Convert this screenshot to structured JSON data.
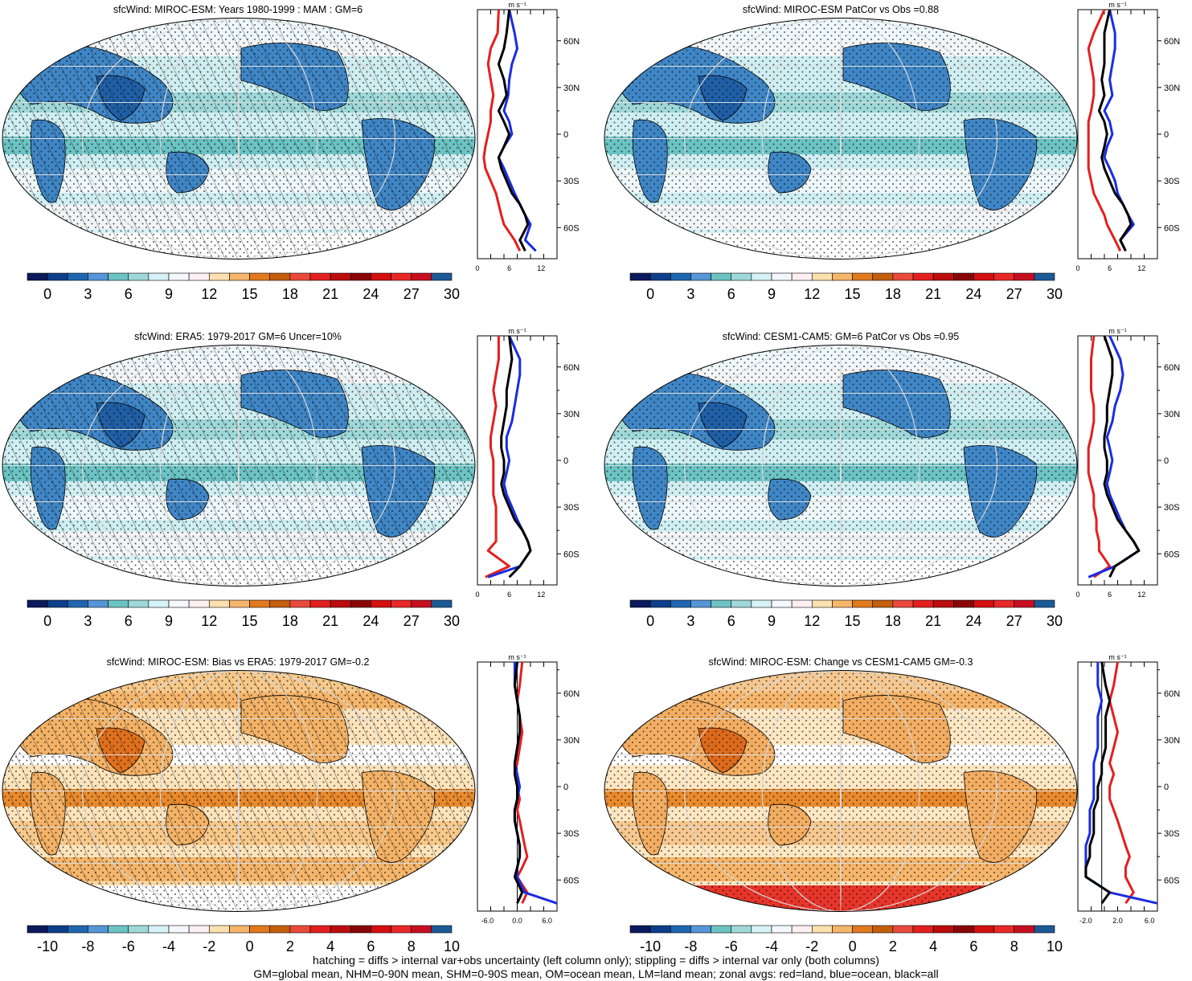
{
  "panels": [
    {
      "title": "sfcWind: MIROC-ESM: Years 1980-1999 : MAM : GM=6",
      "palette": "wind",
      "hatch": true,
      "zonal": "z1",
      "xticks": [
        "0",
        "6",
        "12"
      ],
      "cbar": [
        "0",
        "3",
        "6",
        "9",
        "12",
        "15",
        "18",
        "21",
        "24",
        "27",
        "30"
      ]
    },
    {
      "title": "sfcWind: MIROC-ESM PatCor vs Obs =0.88",
      "palette": "wind",
      "hatch": false,
      "zonal": "z2",
      "xticks": [
        "0",
        "6",
        "12"
      ],
      "cbar": [
        "0",
        "3",
        "6",
        "9",
        "12",
        "15",
        "18",
        "21",
        "24",
        "27",
        "30"
      ]
    },
    {
      "title": "sfcWind: ERA5: 1979-2017 GM=6 Uncer=10%",
      "palette": "wind",
      "hatch": true,
      "zonal": "z3",
      "xticks": [
        "0",
        "6",
        "12"
      ],
      "cbar": [
        "0",
        "3",
        "6",
        "9",
        "12",
        "15",
        "18",
        "21",
        "24",
        "27",
        "30"
      ]
    },
    {
      "title": "sfcWind: CESM1-CAM5: GM=6 PatCor vs Obs =0.95",
      "palette": "wind",
      "hatch": false,
      "zonal": "z4",
      "xticks": [
        "0",
        "6",
        "12"
      ],
      "cbar": [
        "0",
        "3",
        "6",
        "9",
        "12",
        "15",
        "18",
        "21",
        "24",
        "27",
        "30"
      ]
    },
    {
      "title": "sfcWind: MIROC-ESM: Bias vs ERA5: 1979-2017 GM=-0.2",
      "palette": "bias",
      "hatch": true,
      "zonal": "z5",
      "xticks": [
        "-6.0",
        "0.0",
        "6.0"
      ],
      "cbar": [
        "-10",
        "-8",
        "-6",
        "-4",
        "-2",
        "0",
        "2",
        "4",
        "6",
        "8",
        "10"
      ]
    },
    {
      "title": "sfcWind: MIROC-ESM: Change vs CESM1-CAM5 GM=-0.3",
      "palette": "change",
      "hatch": false,
      "zonal": "z6",
      "xticks": [
        "-2.0",
        "2.0",
        "6.0"
      ],
      "cbar": [
        "-10",
        "-8",
        "-6",
        "-4",
        "-2",
        "0",
        "2",
        "4",
        "6",
        "8",
        "10"
      ]
    }
  ],
  "zonal_unit": "m s⁻¹",
  "lat_ticks": [
    "60N",
    "30N",
    "0",
    "30S",
    "60S"
  ],
  "colorbar_colors": [
    "#0b1a5c",
    "#0d3e8a",
    "#1f66b0",
    "#5596d6",
    "#6cc3c4",
    "#9ed8d8",
    "#d6f2f6",
    "#f4f7fb",
    "#fdf0f2",
    "#fce0b0",
    "#f5b56a",
    "#e07a1d",
    "#c45f0c",
    "#ea4a3c",
    "#e41f1f",
    "#bb0d0d",
    "#8a0606",
    "#d40f0f",
    "#ea2727",
    "#c80f1f",
    "#1c5a96"
  ],
  "chart_data": [
    {
      "type": "line",
      "title": "sfcWind: MIROC-ESM: Years 1980-1999 : MAM : GM=6",
      "xlabel": "m s⁻¹",
      "xlim": [
        0,
        15
      ],
      "ylim": [
        -80,
        80
      ],
      "series": [
        {
          "name": "",
          "color": "#e41f1f",
          "x": [
            4,
            3.8,
            2.5,
            2,
            2.5,
            3,
            2.5,
            2.5,
            2,
            1.5,
            1.2,
            1.5,
            2.5,
            3.5,
            4,
            4.5,
            5,
            7,
            8
          ],
          "y": [
            80,
            65,
            55,
            45,
            35,
            25,
            15,
            8,
            0,
            -8,
            -15,
            -22,
            -30,
            -38,
            -45,
            -52,
            -58,
            -68,
            -75
          ]
        },
        {
          "name": "",
          "color": "#1a2de0",
          "x": [
            6,
            7,
            7.5,
            6.5,
            6,
            5.8,
            5,
            6,
            6.5,
            5,
            4,
            5,
            6,
            7,
            8,
            9,
            10,
            9,
            11
          ],
          "y": [
            80,
            65,
            55,
            45,
            35,
            25,
            15,
            8,
            0,
            -8,
            -15,
            -22,
            -30,
            -38,
            -45,
            -52,
            -58,
            -68,
            -75
          ]
        },
        {
          "name": "",
          "color": "#000000",
          "x": [
            6,
            5.5,
            5,
            4,
            5,
            5.5,
            4,
            5,
            6,
            5,
            4,
            4.5,
            5.5,
            6.5,
            8,
            9,
            9.5,
            8,
            9
          ],
          "y": [
            80,
            65,
            55,
            45,
            35,
            25,
            15,
            8,
            0,
            -8,
            -15,
            -22,
            -30,
            -38,
            -45,
            -52,
            -58,
            -68,
            -75
          ]
        }
      ]
    },
    {
      "type": "line",
      "title": "sfcWind: MIROC-ESM PatCor vs Obs =0.88",
      "xlabel": "m s⁻¹",
      "xlim": [
        0,
        15
      ],
      "ylim": [
        -80,
        80
      ],
      "series": [
        {
          "name": "",
          "color": "#e41f1f",
          "x": [
            5,
            3,
            2,
            2.5,
            3,
            3,
            2.5,
            2,
            2,
            2,
            2,
            2,
            2.5,
            3,
            4,
            5,
            5.5,
            7,
            8
          ],
          "y": [
            80,
            65,
            55,
            45,
            35,
            25,
            15,
            8,
            0,
            -8,
            -15,
            -22,
            -30,
            -38,
            -45,
            -52,
            -58,
            -68,
            -75
          ]
        },
        {
          "name": "",
          "color": "#1a2de0",
          "x": [
            6,
            7,
            7,
            6.5,
            6,
            6.5,
            5,
            6,
            6.5,
            5.5,
            5,
            6,
            7,
            7.5,
            8.5,
            9.5,
            10.5,
            8,
            9
          ],
          "y": [
            80,
            65,
            55,
            45,
            35,
            25,
            15,
            8,
            0,
            -8,
            -15,
            -22,
            -30,
            -38,
            -45,
            -52,
            -58,
            -68,
            -75
          ]
        },
        {
          "name": "",
          "color": "#000000",
          "x": [
            6,
            5,
            5,
            5,
            4.5,
            5,
            4,
            5,
            5.5,
            5,
            4.5,
            5,
            6,
            7,
            8.5,
            9.5,
            10,
            8,
            9
          ],
          "y": [
            80,
            65,
            55,
            45,
            35,
            25,
            15,
            8,
            0,
            -8,
            -15,
            -22,
            -30,
            -38,
            -45,
            -52,
            -58,
            -68,
            -75
          ]
        }
      ]
    },
    {
      "type": "line",
      "title": "sfcWind: ERA5: 1979-2017 GM=6 Uncer=10%",
      "xlabel": "m s⁻¹",
      "xlim": [
        0,
        15
      ],
      "ylim": [
        -80,
        80
      ],
      "series": [
        {
          "name": "",
          "color": "#e41f1f",
          "x": [
            4,
            4,
            3.5,
            3,
            3.5,
            3,
            2.5,
            2.5,
            3,
            3,
            3,
            3,
            3.5,
            3.5,
            3.5,
            3.5,
            2,
            6,
            1.5
          ],
          "y": [
            80,
            65,
            55,
            45,
            35,
            25,
            15,
            8,
            0,
            -8,
            -15,
            -22,
            -30,
            -38,
            -45,
            -52,
            -58,
            -68,
            -75
          ]
        },
        {
          "name": "",
          "color": "#1a2de0",
          "x": [
            6,
            8,
            8,
            7.5,
            7,
            6.5,
            5.5,
            5.5,
            6,
            5.5,
            5,
            5.5,
            6.5,
            7.5,
            8.5,
            9.5,
            10,
            8,
            2
          ],
          "y": [
            80,
            65,
            55,
            45,
            35,
            25,
            15,
            8,
            0,
            -8,
            -15,
            -22,
            -30,
            -38,
            -45,
            -52,
            -58,
            -68,
            -75
          ]
        },
        {
          "name": "",
          "color": "#000000",
          "x": [
            6,
            6.5,
            6,
            5.5,
            5.5,
            5,
            4.5,
            4.5,
            5,
            5,
            4.5,
            5,
            6,
            7,
            8.5,
            9.5,
            10,
            8,
            6
          ],
          "y": [
            80,
            65,
            55,
            45,
            35,
            25,
            15,
            8,
            0,
            -8,
            -15,
            -22,
            -30,
            -38,
            -45,
            -52,
            -58,
            -68,
            -75
          ]
        }
      ]
    },
    {
      "type": "line",
      "title": "sfcWind: CESM1-CAM5: GM=6 PatCor vs Obs =0.95",
      "xlabel": "m s⁻¹",
      "xlim": [
        0,
        15
      ],
      "ylim": [
        -80,
        80
      ],
      "series": [
        {
          "name": "",
          "color": "#e41f1f",
          "x": [
            3,
            2.5,
            2.5,
            2.5,
            3,
            3,
            2.5,
            2,
            2,
            2,
            2.5,
            3,
            3,
            3.5,
            3.5,
            4,
            4,
            6,
            3
          ],
          "y": [
            80,
            65,
            55,
            45,
            35,
            25,
            15,
            8,
            0,
            -8,
            -15,
            -22,
            -30,
            -38,
            -45,
            -52,
            -58,
            -68,
            -75
          ]
        },
        {
          "name": "",
          "color": "#1a2de0",
          "x": [
            6,
            8,
            8.5,
            8,
            7,
            6.5,
            5.5,
            6,
            6.5,
            6,
            5.5,
            6,
            7,
            8,
            9,
            10.5,
            11.5,
            7,
            2
          ],
          "y": [
            80,
            65,
            55,
            45,
            35,
            25,
            15,
            8,
            0,
            -8,
            -15,
            -22,
            -30,
            -38,
            -45,
            -52,
            -58,
            -68,
            -75
          ]
        },
        {
          "name": "",
          "color": "#000000",
          "x": [
            5,
            6.5,
            6.5,
            6,
            5.5,
            5.5,
            5,
            5,
            5.5,
            5.5,
            5,
            5.5,
            6.5,
            7.5,
            9,
            10.5,
            11.5,
            7,
            6
          ],
          "y": [
            80,
            65,
            55,
            45,
            35,
            25,
            15,
            8,
            0,
            -8,
            -15,
            -22,
            -30,
            -38,
            -45,
            -52,
            -58,
            -68,
            -75
          ]
        }
      ]
    },
    {
      "type": "line",
      "title": "sfcWind: MIROC-ESM: Bias vs ERA5: 1979-2017 GM=-0.2",
      "xlabel": "m s⁻¹",
      "xlim": [
        -8,
        8
      ],
      "ylim": [
        -80,
        80
      ],
      "series": [
        {
          "name": "",
          "color": "#e41f1f",
          "x": [
            1,
            0.5,
            0,
            0.5,
            1,
            0.5,
            0,
            -0.5,
            0,
            0.5,
            0,
            0.5,
            1,
            1.5,
            2,
            1,
            0,
            2,
            1
          ],
          "y": [
            80,
            65,
            55,
            45,
            35,
            25,
            15,
            8,
            0,
            -8,
            -15,
            -22,
            -30,
            -38,
            -45,
            -52,
            -58,
            -68,
            -75
          ]
        },
        {
          "name": "",
          "color": "#1a2de0",
          "x": [
            -0.5,
            -0.5,
            0,
            0.5,
            0.5,
            0,
            -0.5,
            0,
            0.5,
            0,
            -0.5,
            -0.5,
            0,
            0.5,
            0.5,
            0,
            0,
            1.5,
            8
          ],
          "y": [
            80,
            65,
            55,
            45,
            35,
            25,
            15,
            8,
            0,
            -8,
            -15,
            -22,
            -30,
            -38,
            -45,
            -52,
            -58,
            -68,
            -75
          ]
        },
        {
          "name": "",
          "color": "#000000",
          "x": [
            0,
            -0.5,
            0,
            0.5,
            0.5,
            0,
            -0.5,
            -0.5,
            0,
            0,
            -0.5,
            -0.5,
            0,
            0.5,
            0.5,
            0,
            -0.5,
            1,
            0
          ],
          "y": [
            80,
            65,
            55,
            45,
            35,
            25,
            15,
            8,
            0,
            -8,
            -15,
            -22,
            -30,
            -38,
            -45,
            -52,
            -58,
            -68,
            -75
          ]
        }
      ]
    },
    {
      "type": "line",
      "title": "sfcWind: MIROC-ESM: Change vs CESM1-CAM5 GM=-0.3",
      "xlabel": "m s⁻¹",
      "xlim": [
        -3,
        7
      ],
      "ylim": [
        -80,
        80
      ],
      "series": [
        {
          "name": "",
          "color": "#e41f1f",
          "x": [
            2,
            1.5,
            1,
            1.5,
            2,
            1.5,
            1,
            1.5,
            1,
            1,
            1.5,
            2,
            2.5,
            3,
            3.5,
            3,
            3,
            4,
            3
          ],
          "y": [
            80,
            65,
            55,
            45,
            35,
            25,
            15,
            8,
            0,
            -8,
            -15,
            -22,
            -30,
            -38,
            -45,
            -52,
            -58,
            -68,
            -75
          ]
        },
        {
          "name": "",
          "color": "#1a2de0",
          "x": [
            -0.5,
            -0.5,
            0,
            -0.5,
            -0.5,
            -0.5,
            -1,
            -1,
            -1,
            -1,
            -1.5,
            -1.5,
            -1.5,
            -2,
            -2,
            -2,
            -2,
            1,
            7
          ],
          "y": [
            80,
            65,
            55,
            45,
            35,
            25,
            15,
            8,
            0,
            -8,
            -15,
            -22,
            -30,
            -38,
            -45,
            -52,
            -58,
            -68,
            -75
          ]
        },
        {
          "name": "",
          "color": "#000000",
          "x": [
            0,
            0.5,
            1,
            0.5,
            0.5,
            0.5,
            0,
            0,
            -0.5,
            -0.5,
            -1,
            -1,
            -1,
            -1.5,
            -1.5,
            -2,
            -2,
            1,
            0
          ],
          "y": [
            80,
            65,
            55,
            45,
            35,
            25,
            15,
            8,
            0,
            -8,
            -15,
            -22,
            -30,
            -38,
            -45,
            -52,
            -58,
            -68,
            -75
          ]
        }
      ]
    }
  ],
  "footer": {
    "line1": "hatching = diffs > internal var+obs uncertainty (left column only); stippling = diffs > internal var only (both columns)",
    "line2": "GM=global mean, NHM=0-90N mean, SHM=0-90S mean, OM=ocean mean, LM=land mean; zonal avgs: red=land, blue=ocean, black=all"
  }
}
